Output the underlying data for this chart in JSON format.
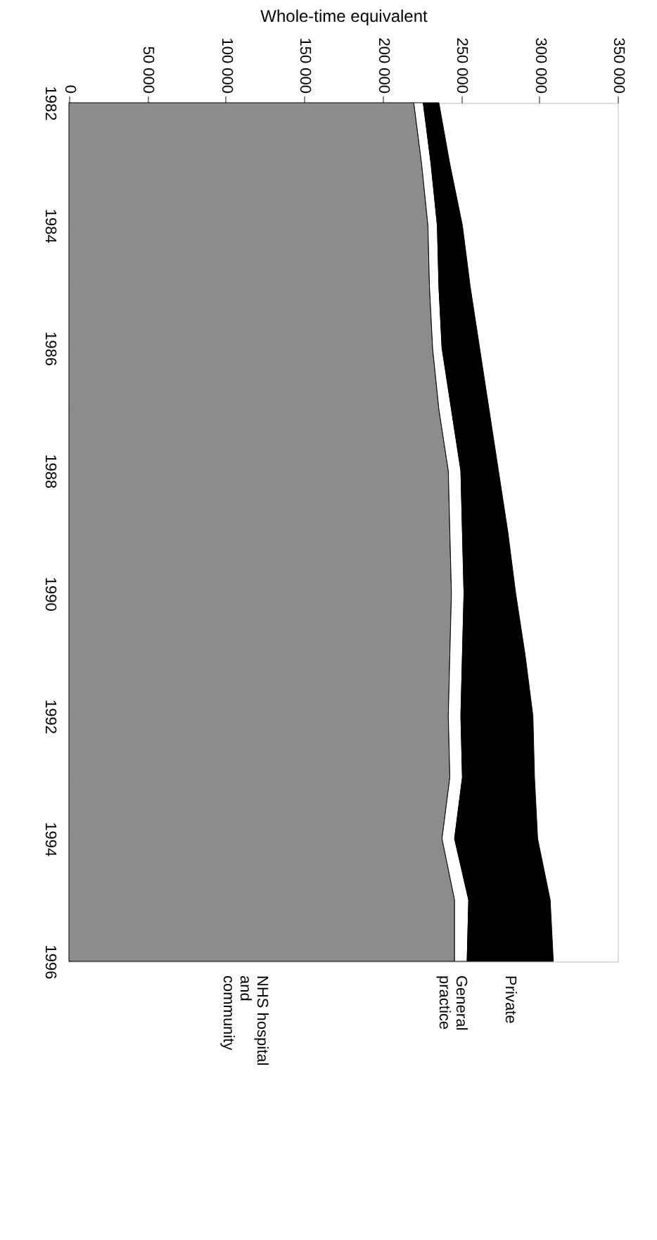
{
  "chart_data": {
    "type": "area",
    "stacked": true,
    "orientation": "horizontal",
    "xlabel": "Whole-time equivalent",
    "categories": [
      "1982",
      null,
      "1984",
      null,
      "1986",
      null,
      "1988",
      null,
      "1990",
      null,
      "1992",
      null,
      "1994",
      null,
      "1996"
    ],
    "xlim": [
      0,
      350000
    ],
    "xticks": [
      0,
      {
        "value": 50000,
        "label": "50 000"
      },
      {
        "value": 100000,
        "label": "100 000"
      },
      {
        "value": 150000,
        "label": "150 000"
      },
      {
        "value": 200000,
        "label": "200 000"
      },
      {
        "value": 250000,
        "label": "250 000"
      },
      {
        "value": 300000,
        "label": "300 000"
      },
      {
        "value": 350000,
        "label": "350 000"
      }
    ],
    "series": [
      {
        "name": "NHS hospital and community",
        "color": "#8c8c8c",
        "values": [
          220000,
          225000,
          229000,
          230000,
          232000,
          236000,
          242000,
          243000,
          244000,
          243000,
          242000,
          243000,
          238000,
          246000,
          246000
        ]
      },
      {
        "name": "General practice",
        "color": "#ffffff",
        "values": [
          6000,
          6000,
          6000,
          6000,
          6000,
          8000,
          8000,
          8000,
          8000,
          8000,
          8000,
          8000,
          8000,
          9000,
          8000
        ]
      },
      {
        "name": "Private",
        "color": "#000000",
        "values": [
          10000,
          12000,
          16000,
          20000,
          24000,
          24000,
          24000,
          29000,
          33000,
          40000,
          46000,
          46000,
          53000,
          52000,
          55000
        ]
      }
    ]
  }
}
